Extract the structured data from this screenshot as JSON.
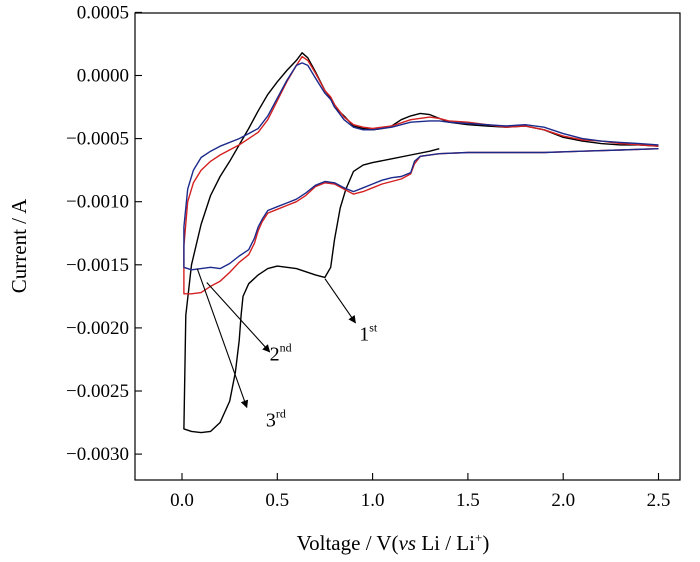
{
  "chart_data": {
    "type": "line",
    "title": "",
    "xlabel": {
      "prefix": "Voltage / V(",
      "vs": "vs",
      "suffix": " Li / Li",
      "sup": "+",
      "close": ")"
    },
    "ylabel": "Current / A",
    "xlim": [
      -0.25,
      2.7
    ],
    "ylim": [
      -0.0033,
      0.0005
    ],
    "xticks": [
      0.0,
      0.5,
      1.0,
      1.5,
      2.0,
      2.5
    ],
    "xtick_labels": [
      "0.0",
      "0.5",
      "1.0",
      "1.5",
      "2.0",
      "2.5"
    ],
    "yticks": [
      0.0005,
      0.0,
      -0.0005,
      -0.001,
      -0.0015,
      -0.002,
      -0.0025,
      -0.003
    ],
    "ytick_labels": [
      "0.0005",
      "0.0000",
      "−0.0005",
      "−0.0010",
      "−0.0015",
      "−0.0020",
      "−0.0025",
      "−0.0030"
    ],
    "grid": false,
    "colors": {
      "cycle1": "#000000",
      "cycle2": "#d42020",
      "cycle3": "#1c2a8c"
    },
    "series": [
      {
        "label": "1st",
        "color": "#000000",
        "points": [
          [
            1.35,
            -0.00058
          ],
          [
            1.3,
            -0.0006
          ],
          [
            1.2,
            -0.00063
          ],
          [
            1.1,
            -0.00066
          ],
          [
            1.0,
            -0.00069
          ],
          [
            0.95,
            -0.00071
          ],
          [
            0.9,
            -0.00076
          ],
          [
            0.86,
            -0.0009
          ],
          [
            0.83,
            -0.00105
          ],
          [
            0.8,
            -0.0013
          ],
          [
            0.78,
            -0.00152
          ],
          [
            0.75,
            -0.0016
          ],
          [
            0.7,
            -0.00158
          ],
          [
            0.6,
            -0.00153
          ],
          [
            0.5,
            -0.00151
          ],
          [
            0.45,
            -0.00153
          ],
          [
            0.4,
            -0.00158
          ],
          [
            0.35,
            -0.00165
          ],
          [
            0.32,
            -0.00175
          ],
          [
            0.31,
            -0.0019
          ],
          [
            0.3,
            -0.0021
          ],
          [
            0.28,
            -0.00235
          ],
          [
            0.25,
            -0.00258
          ],
          [
            0.2,
            -0.00275
          ],
          [
            0.15,
            -0.00282
          ],
          [
            0.1,
            -0.00283
          ],
          [
            0.05,
            -0.00282
          ],
          [
            0.01,
            -0.0028
          ],
          [
            0.02,
            -0.0019
          ],
          [
            0.05,
            -0.0015
          ],
          [
            0.1,
            -0.00118
          ],
          [
            0.15,
            -0.00095
          ],
          [
            0.2,
            -0.0008
          ],
          [
            0.25,
            -0.00068
          ],
          [
            0.3,
            -0.00055
          ],
          [
            0.35,
            -0.00042
          ],
          [
            0.4,
            -0.00028
          ],
          [
            0.45,
            -0.00015
          ],
          [
            0.5,
            -5e-05
          ],
          [
            0.55,
            4e-05
          ],
          [
            0.6,
            0.00012
          ],
          [
            0.63,
            0.00018
          ],
          [
            0.66,
            0.00014
          ],
          [
            0.7,
            3e-05
          ],
          [
            0.75,
            -0.00012
          ],
          [
            0.78,
            -0.00018
          ],
          [
            0.8,
            -0.00025
          ],
          [
            0.85,
            -0.00032
          ],
          [
            0.9,
            -0.0004
          ],
          [
            0.95,
            -0.00042
          ],
          [
            1.0,
            -0.00043
          ],
          [
            1.05,
            -0.00042
          ],
          [
            1.1,
            -0.0004
          ],
          [
            1.15,
            -0.00035
          ],
          [
            1.2,
            -0.00032
          ],
          [
            1.25,
            -0.0003
          ],
          [
            1.3,
            -0.00031
          ],
          [
            1.35,
            -0.00034
          ],
          [
            1.4,
            -0.00037
          ],
          [
            1.5,
            -0.00039
          ],
          [
            1.6,
            -0.0004
          ],
          [
            1.7,
            -0.00041
          ],
          [
            1.8,
            -0.0004
          ],
          [
            1.9,
            -0.00043
          ],
          [
            2.0,
            -0.00049
          ],
          [
            2.1,
            -0.00052
          ],
          [
            2.2,
            -0.00054
          ],
          [
            2.3,
            -0.00055
          ],
          [
            2.4,
            -0.00055
          ],
          [
            2.5,
            -0.00056
          ]
        ]
      },
      {
        "label": "2nd",
        "color": "#d42020",
        "points": [
          [
            2.5,
            -0.00058
          ],
          [
            2.3,
            -0.00059
          ],
          [
            2.1,
            -0.0006
          ],
          [
            1.9,
            -0.00061
          ],
          [
            1.7,
            -0.00061
          ],
          [
            1.5,
            -0.00061
          ],
          [
            1.35,
            -0.00062
          ],
          [
            1.25,
            -0.00064
          ],
          [
            1.22,
            -0.0007
          ],
          [
            1.2,
            -0.00078
          ],
          [
            1.15,
            -0.00082
          ],
          [
            1.1,
            -0.00084
          ],
          [
            1.05,
            -0.00086
          ],
          [
            1.0,
            -0.00089
          ],
          [
            0.95,
            -0.00092
          ],
          [
            0.9,
            -0.00094
          ],
          [
            0.85,
            -0.0009
          ],
          [
            0.8,
            -0.00086
          ],
          [
            0.75,
            -0.00085
          ],
          [
            0.7,
            -0.00088
          ],
          [
            0.65,
            -0.00095
          ],
          [
            0.6,
            -0.001
          ],
          [
            0.55,
            -0.00103
          ],
          [
            0.5,
            -0.00106
          ],
          [
            0.45,
            -0.00109
          ],
          [
            0.42,
            -0.00116
          ],
          [
            0.4,
            -0.00123
          ],
          [
            0.38,
            -0.00133
          ],
          [
            0.35,
            -0.00142
          ],
          [
            0.3,
            -0.00148
          ],
          [
            0.25,
            -0.00156
          ],
          [
            0.2,
            -0.00163
          ],
          [
            0.15,
            -0.00167
          ],
          [
            0.1,
            -0.00172
          ],
          [
            0.05,
            -0.00173
          ],
          [
            0.01,
            -0.00173
          ],
          [
            0.01,
            -0.00135
          ],
          [
            0.03,
            -0.001
          ],
          [
            0.06,
            -0.00085
          ],
          [
            0.1,
            -0.00075
          ],
          [
            0.15,
            -0.00068
          ],
          [
            0.2,
            -0.00063
          ],
          [
            0.3,
            -0.00055
          ],
          [
            0.4,
            -0.00045
          ],
          [
            0.45,
            -0.00035
          ],
          [
            0.5,
            -0.0002
          ],
          [
            0.55,
            -5e-05
          ],
          [
            0.6,
            8e-05
          ],
          [
            0.63,
            0.00015
          ],
          [
            0.66,
            0.00012
          ],
          [
            0.7,
            2e-05
          ],
          [
            0.75,
            -0.00012
          ],
          [
            0.78,
            -0.00017
          ],
          [
            0.8,
            -0.00023
          ],
          [
            0.85,
            -0.00033
          ],
          [
            0.9,
            -0.00039
          ],
          [
            0.95,
            -0.00041
          ],
          [
            1.0,
            -0.00042
          ],
          [
            1.05,
            -0.00041
          ],
          [
            1.1,
            -0.0004
          ],
          [
            1.2,
            -0.00035
          ],
          [
            1.3,
            -0.00033
          ],
          [
            1.35,
            -0.00034
          ],
          [
            1.4,
            -0.00036
          ],
          [
            1.5,
            -0.00037
          ],
          [
            1.6,
            -0.00039
          ],
          [
            1.7,
            -0.00041
          ],
          [
            1.8,
            -0.0004
          ],
          [
            1.9,
            -0.00043
          ],
          [
            2.0,
            -0.00048
          ],
          [
            2.1,
            -0.00051
          ],
          [
            2.2,
            -0.00052
          ],
          [
            2.3,
            -0.00054
          ],
          [
            2.4,
            -0.00055
          ],
          [
            2.5,
            -0.00056
          ]
        ]
      },
      {
        "label": "3rd",
        "color": "#1c2a8c",
        "points": [
          [
            2.5,
            -0.00058
          ],
          [
            2.3,
            -0.00059
          ],
          [
            2.1,
            -0.0006
          ],
          [
            1.9,
            -0.00061
          ],
          [
            1.7,
            -0.00061
          ],
          [
            1.5,
            -0.00061
          ],
          [
            1.35,
            -0.00062
          ],
          [
            1.25,
            -0.00064
          ],
          [
            1.22,
            -0.00068
          ],
          [
            1.2,
            -0.00077
          ],
          [
            1.15,
            -0.0008
          ],
          [
            1.1,
            -0.00081
          ],
          [
            1.05,
            -0.00083
          ],
          [
            1.0,
            -0.00086
          ],
          [
            0.95,
            -0.00089
          ],
          [
            0.9,
            -0.00092
          ],
          [
            0.85,
            -0.00089
          ],
          [
            0.8,
            -0.00085
          ],
          [
            0.75,
            -0.00084
          ],
          [
            0.7,
            -0.00087
          ],
          [
            0.65,
            -0.00093
          ],
          [
            0.6,
            -0.00098
          ],
          [
            0.55,
            -0.00101
          ],
          [
            0.5,
            -0.00104
          ],
          [
            0.45,
            -0.00107
          ],
          [
            0.42,
            -0.00114
          ],
          [
            0.4,
            -0.0012
          ],
          [
            0.38,
            -0.00129
          ],
          [
            0.35,
            -0.00138
          ],
          [
            0.3,
            -0.00143
          ],
          [
            0.25,
            -0.00149
          ],
          [
            0.2,
            -0.00153
          ],
          [
            0.15,
            -0.00152
          ],
          [
            0.1,
            -0.00153
          ],
          [
            0.05,
            -0.00154
          ],
          [
            0.01,
            -0.00152
          ],
          [
            0.01,
            -0.0012
          ],
          [
            0.03,
            -0.0009
          ],
          [
            0.06,
            -0.00075
          ],
          [
            0.1,
            -0.00065
          ],
          [
            0.15,
            -0.0006
          ],
          [
            0.2,
            -0.00056
          ],
          [
            0.3,
            -0.0005
          ],
          [
            0.4,
            -0.00042
          ],
          [
            0.45,
            -0.00032
          ],
          [
            0.5,
            -0.00018
          ],
          [
            0.55,
            -4e-05
          ],
          [
            0.6,
            8e-05
          ],
          [
            0.63,
            0.0001
          ],
          [
            0.66,
            8e-05
          ],
          [
            0.7,
            -2e-05
          ],
          [
            0.75,
            -0.00014
          ],
          [
            0.78,
            -0.00019
          ],
          [
            0.8,
            -0.00025
          ],
          [
            0.85,
            -0.00035
          ],
          [
            0.9,
            -0.00041
          ],
          [
            0.95,
            -0.00043
          ],
          [
            1.0,
            -0.00043
          ],
          [
            1.05,
            -0.00042
          ],
          [
            1.1,
            -0.00041
          ],
          [
            1.2,
            -0.00037
          ],
          [
            1.3,
            -0.00036
          ],
          [
            1.35,
            -0.00036
          ],
          [
            1.4,
            -0.00037
          ],
          [
            1.5,
            -0.00038
          ],
          [
            1.6,
            -0.00039
          ],
          [
            1.7,
            -0.0004
          ],
          [
            1.8,
            -0.00039
          ],
          [
            1.9,
            -0.00041
          ],
          [
            2.0,
            -0.00046
          ],
          [
            2.1,
            -0.0005
          ],
          [
            2.2,
            -0.00052
          ],
          [
            2.3,
            -0.00053
          ],
          [
            2.4,
            -0.00054
          ],
          [
            2.5,
            -0.00055
          ]
        ]
      }
    ],
    "annotations": [
      {
        "name": "first",
        "base": "1",
        "sup": "st",
        "text_at": [
          0.93,
          -0.0021
        ],
        "arrow_from": [
          0.91,
          -0.00196
        ],
        "arrow_to": [
          0.75,
          -0.00161
        ]
      },
      {
        "name": "second",
        "base": "2",
        "sup": "nd",
        "text_at": [
          0.46,
          -0.00226
        ],
        "arrow_from": [
          0.46,
          -0.00219
        ],
        "arrow_to": [
          0.13,
          -0.00164
        ]
      },
      {
        "name": "third",
        "base": "3",
        "sup": "rd",
        "text_at": [
          0.44,
          -0.00278
        ],
        "arrow_from": [
          0.34,
          -0.00263
        ],
        "arrow_to": [
          0.08,
          -0.00153
        ]
      }
    ]
  }
}
